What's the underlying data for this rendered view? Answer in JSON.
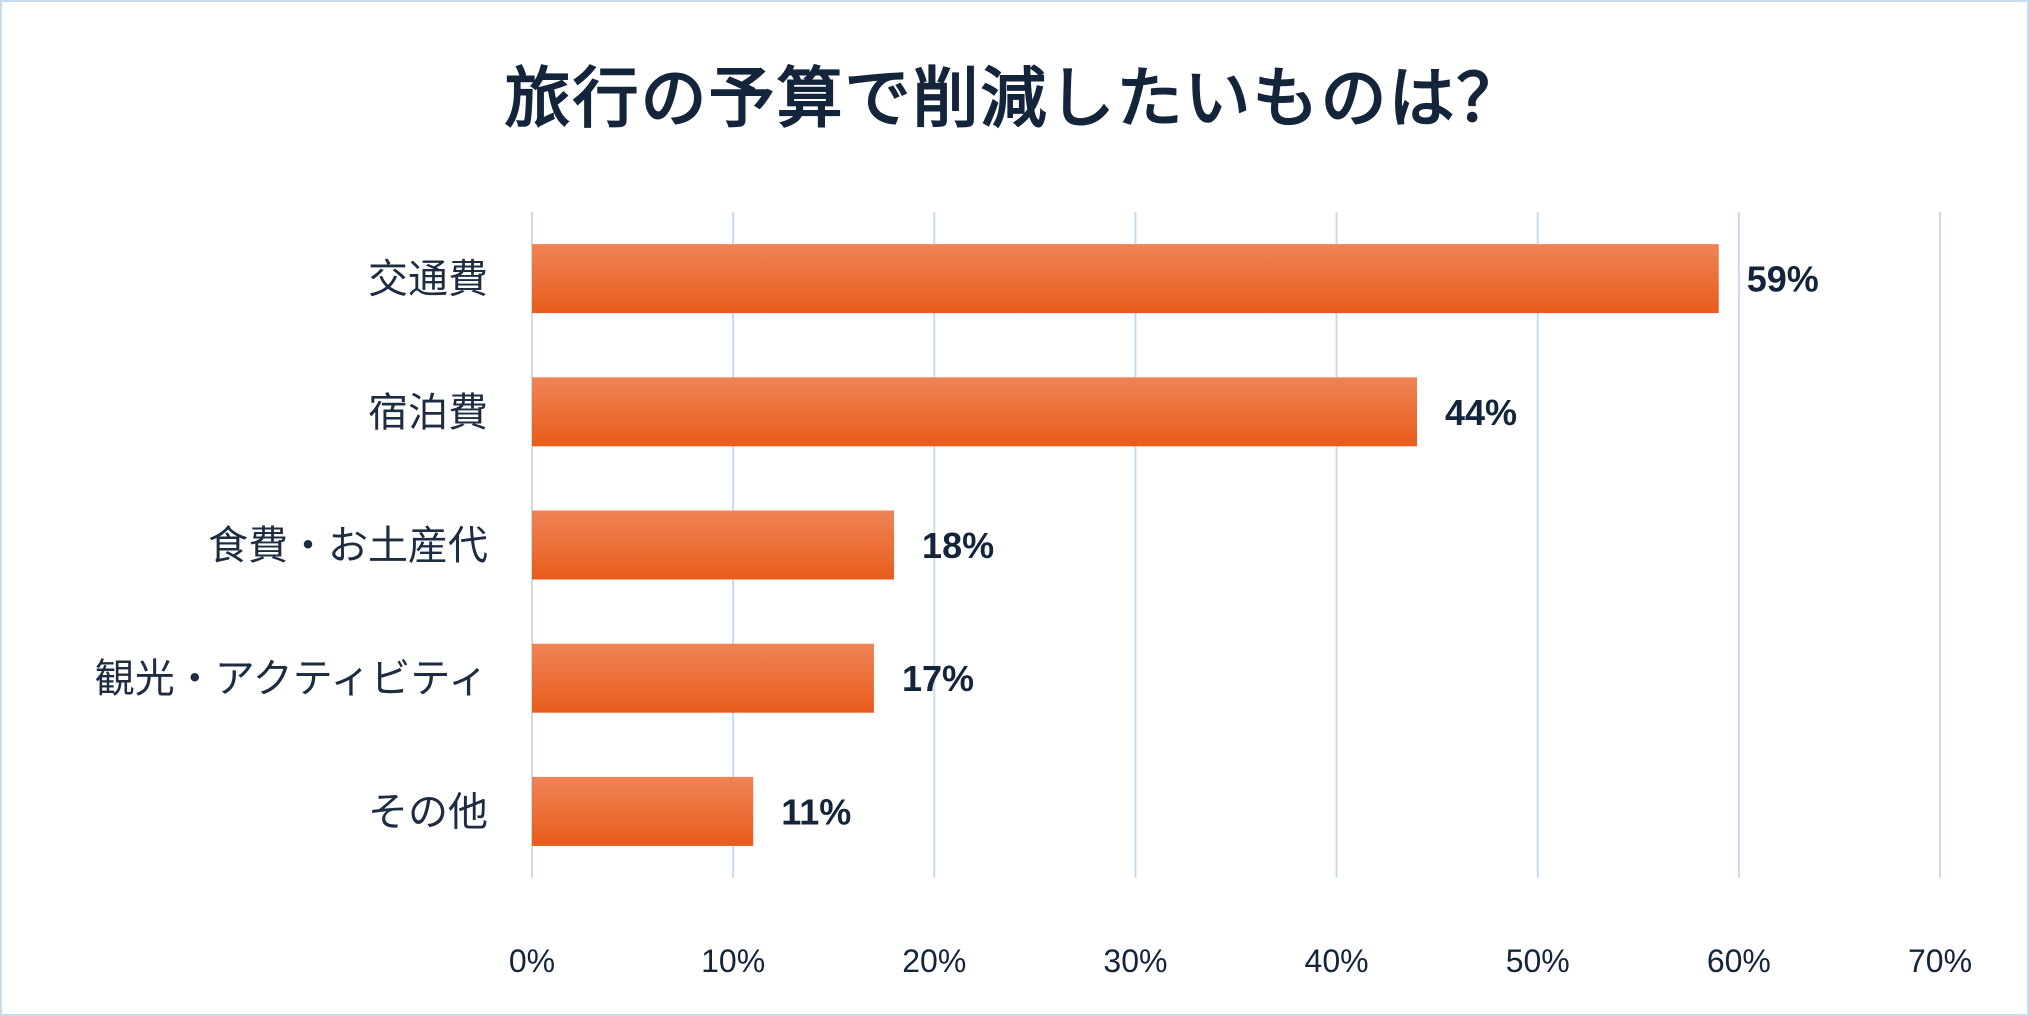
{
  "chart_data": {
    "type": "bar",
    "orientation": "horizontal",
    "title": "旅行の予算で削減したいものは？",
    "categories": [
      "交通費",
      "宿泊費",
      "食費・お土産代",
      "観光・アクティビティ",
      "その他"
    ],
    "values": [
      59,
      44,
      18,
      17,
      11
    ],
    "value_labels": [
      "59%",
      "44%",
      "18%",
      "17%",
      "11%"
    ],
    "xlim": [
      0,
      70
    ],
    "x_ticks": [
      0,
      10,
      20,
      30,
      40,
      50,
      60,
      70
    ],
    "x_tick_labels": [
      "0%",
      "10%",
      "20%",
      "30%",
      "40%",
      "50%",
      "60%",
      "70%"
    ],
    "grid": true,
    "legend": "none",
    "colors": {
      "bar_top": "#ef8456",
      "bar_bottom": "#e85c1b",
      "grid": "#c7dcee",
      "title": "#13243b",
      "frame": "#c9d9ee"
    }
  }
}
